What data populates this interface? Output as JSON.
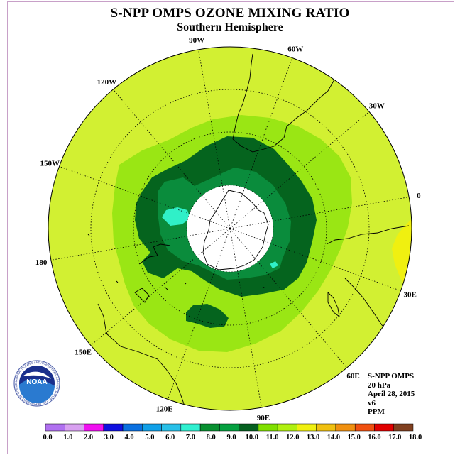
{
  "title": "S-NPP OMPS OZONE MIXING RATIO",
  "subtitle": "Southern Hemisphere",
  "longitude_labels": [
    "90W",
    "60W",
    "30W",
    "0",
    "30E",
    "60E",
    "90E",
    "120E",
    "150E",
    "180",
    "150W",
    "120W"
  ],
  "info": {
    "instrument": "S-NPP OMPS",
    "level": "20 hPa",
    "date": "April 28, 2015",
    "version": "v6",
    "units": "PPM"
  },
  "logo": {
    "text": "NOAA",
    "ring": "NATIONAL OCEANIC AND ATMOSPHERIC ADMINISTRATION · U.S. DEPARTMENT OF COMMERCE"
  },
  "colorbar": {
    "labels": [
      "0.0",
      "1.0",
      "2.0",
      "3.0",
      "4.0",
      "5.0",
      "6.0",
      "7.0",
      "8.0",
      "9.0",
      "10.0",
      "11.0",
      "12.0",
      "13.0",
      "14.0",
      "15.0",
      "16.0",
      "17.0",
      "18.0"
    ],
    "colors": [
      "#b070f0",
      "#d8a0f0",
      "#f010f0",
      "#1010e0",
      "#0a70e0",
      "#10a0e8",
      "#28c0e8",
      "#30f0d0",
      "#089030",
      "#05a040",
      "#056020",
      "#80e000",
      "#b0f010",
      "#f0f010",
      "#f0c010",
      "#f09010",
      "#f05010",
      "#e00000",
      "#804020"
    ]
  },
  "colors": {
    "background_field": "#d2f032",
    "band_11": "#9ae614",
    "band_9": "#0a8c3c",
    "band_10": "#05641e",
    "band_8": "#30f0c8",
    "band_13": "#f0f010",
    "polar_night": "#ffffff"
  }
}
